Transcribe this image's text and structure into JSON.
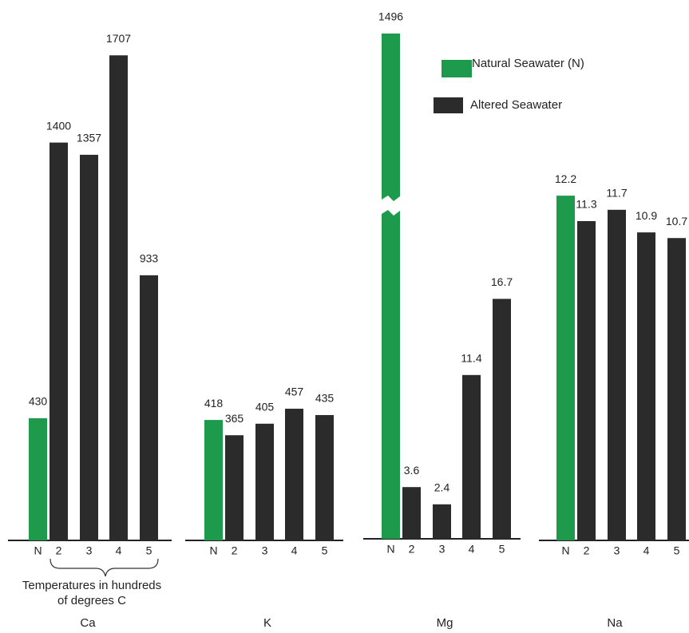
{
  "legend": [
    {
      "name": "Natural Seawater (N)",
      "color": "#1e9a4c"
    },
    {
      "name": "Altered Seawater",
      "color": "#2b2b2b"
    }
  ],
  "annotation": "Temperatures in hundreds of degrees C",
  "chart_data": [
    {
      "type": "bar",
      "title": "Ca",
      "categories": [
        "N",
        "2",
        "3",
        "4",
        "5"
      ],
      "values": [
        430,
        1400,
        1357,
        1707,
        933
      ]
    },
    {
      "type": "bar",
      "title": "K",
      "categories": [
        "N",
        "2",
        "3",
        "4",
        "5"
      ],
      "values": [
        418,
        365,
        405,
        457,
        435
      ]
    },
    {
      "type": "bar",
      "title": "Mg",
      "categories": [
        "N",
        "2",
        "3",
        "4",
        "5"
      ],
      "values": [
        1496,
        3.6,
        2.4,
        11.4,
        16.7
      ]
    },
    {
      "type": "bar",
      "title": "Na",
      "categories": [
        "N",
        "2",
        "3",
        "4",
        "5"
      ],
      "values": [
        12.2,
        11.3,
        11.7,
        10.9,
        10.7
      ]
    }
  ]
}
